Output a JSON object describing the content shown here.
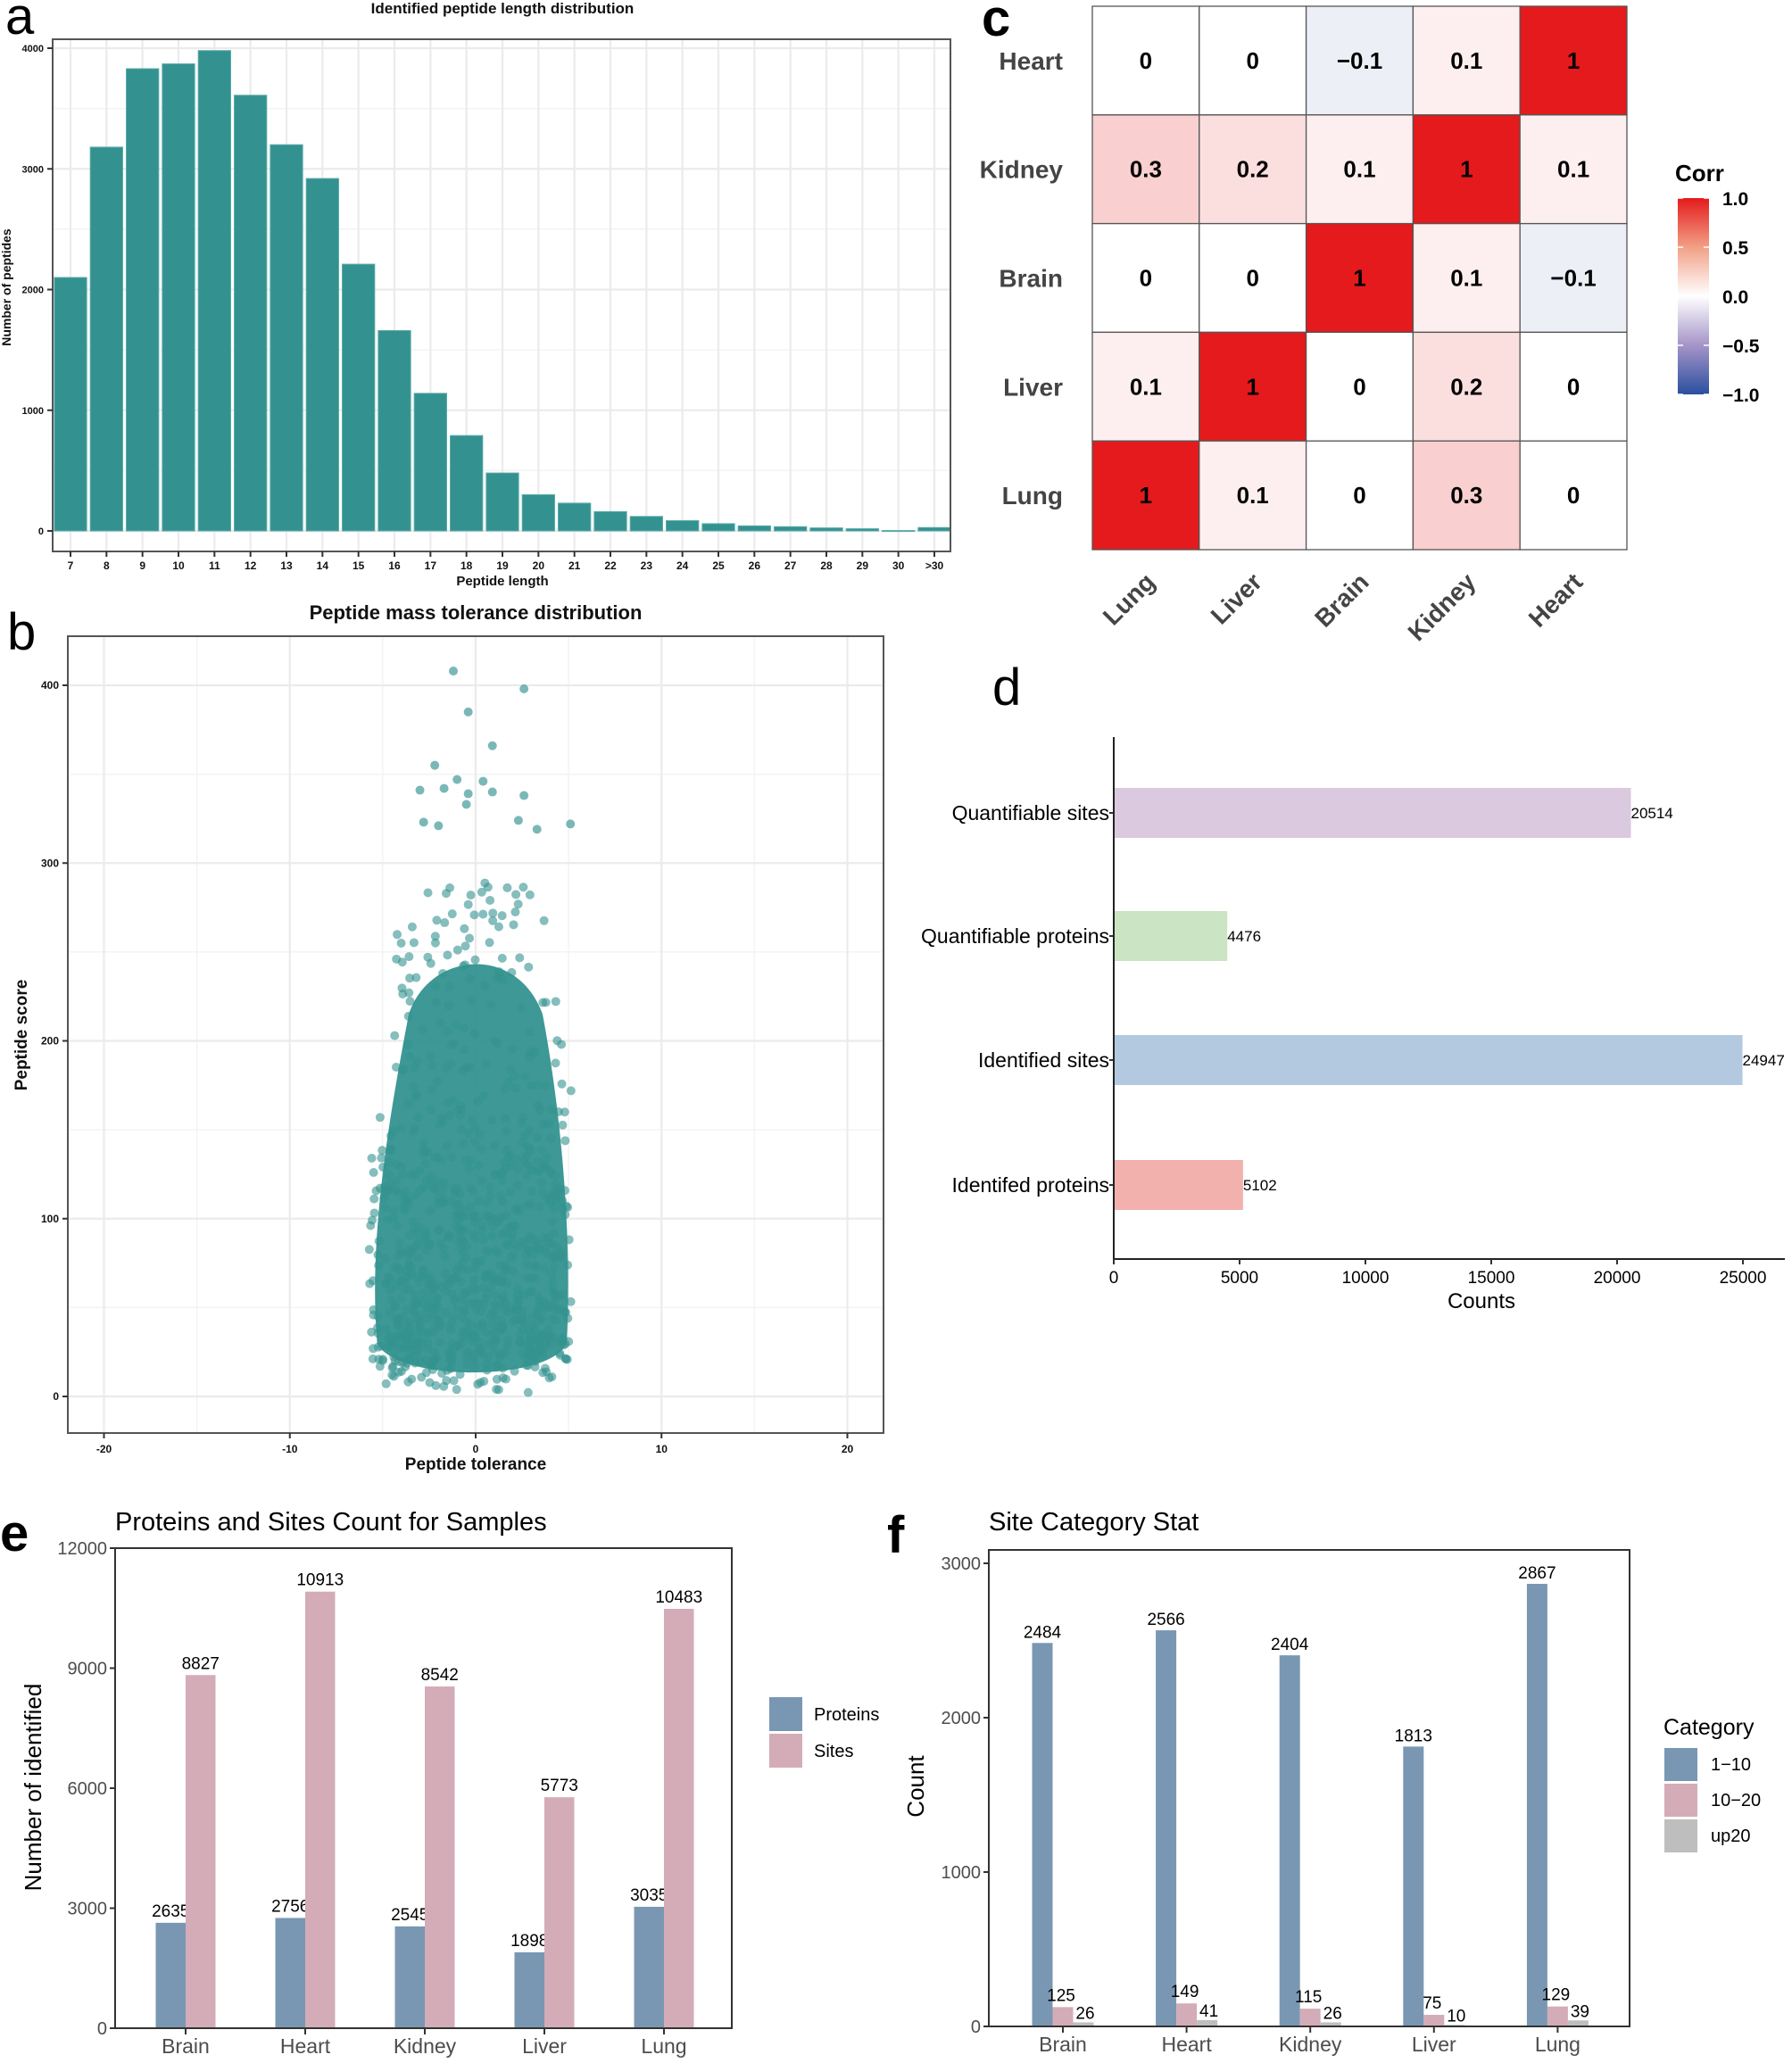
{
  "figure": {
    "panel_letters": [
      "a",
      "b",
      "c",
      "d",
      "e",
      "f"
    ]
  },
  "chart_data": [
    {
      "id": "a",
      "type": "bar",
      "title": "Identified peptide length distribution",
      "xlabel": "Peptide length",
      "ylabel": "Number of peptides",
      "categories": [
        "7",
        "8",
        "9",
        "10",
        "11",
        "12",
        "13",
        "14",
        "15",
        "16",
        "17",
        "18",
        "19",
        "20",
        "21",
        "22",
        "23",
        "24",
        "25",
        "26",
        "27",
        "28",
        "29",
        "30",
        ">30"
      ],
      "values": [
        2100,
        3180,
        3830,
        3870,
        3980,
        3610,
        3200,
        2920,
        2210,
        1660,
        1140,
        790,
        480,
        300,
        230,
        160,
        120,
        85,
        60,
        42,
        35,
        25,
        18,
        3,
        28
      ],
      "yticks": [
        0,
        1000,
        2000,
        3000,
        4000
      ],
      "ylim": [
        -200,
        4180
      ],
      "grid": true,
      "color": "#339290"
    },
    {
      "id": "b",
      "type": "scatter",
      "title": "Peptide mass tolerance distribution",
      "xlabel": "Peptide tolerance",
      "ylabel": "Peptide score",
      "xticks": [
        -20,
        -10,
        0,
        10,
        20
      ],
      "xtick_labels": [
        "-20",
        "-10",
        "0",
        "10",
        "20"
      ],
      "yticks": [
        0,
        100,
        200,
        300,
        400
      ],
      "xlim": [
        -22,
        22
      ],
      "ylim": [
        -20,
        430
      ],
      "grid": true,
      "color": "#339290",
      "distribution": {
        "x_range": [
          -6.5,
          6
        ],
        "x_core_range": [
          -5,
          4.5
        ],
        "y_bulk_range": [
          0,
          250
        ],
        "y_max": 408,
        "note": "dense cloud of points centered near x=0, most scores between 20 and 200"
      },
      "outliers": [
        {
          "x": -1.2,
          "y": 408
        },
        {
          "x": 2.6,
          "y": 398
        },
        {
          "x": -0.4,
          "y": 385
        },
        {
          "x": 0.9,
          "y": 366
        },
        {
          "x": -2.2,
          "y": 355
        },
        {
          "x": -1.0,
          "y": 347
        },
        {
          "x": 0.4,
          "y": 346
        },
        {
          "x": -3.0,
          "y": 341
        },
        {
          "x": -1.7,
          "y": 342
        },
        {
          "x": -0.4,
          "y": 339
        },
        {
          "x": 0.9,
          "y": 340
        },
        {
          "x": 2.6,
          "y": 338
        },
        {
          "x": -0.5,
          "y": 333
        },
        {
          "x": -2.8,
          "y": 323
        },
        {
          "x": 5.1,
          "y": 322
        },
        {
          "x": 3.3,
          "y": 319
        },
        {
          "x": 2.3,
          "y": 324
        },
        {
          "x": -2.0,
          "y": 321
        }
      ]
    },
    {
      "id": "c",
      "type": "heatmap",
      "legend_title": "Corr",
      "row_labels": [
        "Heart",
        "Kidney",
        "Brain",
        "Liver",
        "Lung"
      ],
      "col_labels": [
        "Lung",
        "Liver",
        "Brain",
        "Kidney",
        "Heart"
      ],
      "values": [
        [
          0,
          0,
          -0.1,
          0.1,
          1
        ],
        [
          0.3,
          0.2,
          0.1,
          1,
          0.1
        ],
        [
          0,
          0,
          1,
          0.1,
          -0.1
        ],
        [
          0.1,
          1,
          0,
          0.2,
          0
        ],
        [
          1,
          0.1,
          0,
          0.3,
          0
        ]
      ],
      "cell_labels": [
        [
          "0",
          "0",
          "−0.1",
          "0.1",
          "1"
        ],
        [
          "0.3",
          "0.2",
          "0.1",
          "1",
          "0.1"
        ],
        [
          "0",
          "0",
          "1",
          "0.1",
          "−0.1"
        ],
        [
          "0.1",
          "1",
          "0",
          "0.2",
          "0"
        ],
        [
          "1",
          "0.1",
          "0",
          "0.3",
          "0"
        ]
      ],
      "colorbar_ticks": [
        "1.0",
        "0.5",
        "0.0",
        "−0.5",
        "−1.0"
      ],
      "colorbar_range": [
        -1,
        1
      ],
      "colors": {
        "high": "#E41A1C",
        "mid": "#FFFFFF",
        "low": "#2B4FA0"
      }
    },
    {
      "id": "d",
      "type": "bar",
      "orientation": "horizontal",
      "categories": [
        "Quantifiable sites",
        "Quantifiable proteins",
        "Identified sites",
        "Identifed proteins"
      ],
      "values": [
        20514,
        4476,
        24947,
        5102
      ],
      "value_labels": [
        "20514",
        "4476",
        "24947",
        "5102"
      ],
      "colors": [
        "#DBC9DF",
        "#CBE4C4",
        "#B3C9DF",
        "#F3B1AE"
      ],
      "xlabel": "Counts",
      "xticks": [
        0,
        5000,
        10000,
        15000,
        20000,
        25000
      ],
      "xlim": [
        0,
        26800
      ]
    },
    {
      "id": "e",
      "type": "bar",
      "title": "Proteins and Sites Count for Samples",
      "ylabel": "Number of identified",
      "categories": [
        "Brain",
        "Heart",
        "Kidney",
        "Liver",
        "Lung"
      ],
      "series": [
        {
          "name": "Proteins",
          "values": [
            2635,
            2756,
            2545,
            1898,
            3035
          ],
          "color": "#7997B3"
        },
        {
          "name": "Sites",
          "values": [
            8827,
            10913,
            8542,
            5773,
            10483
          ],
          "color": "#D3ACB7"
        }
      ],
      "yticks": [
        0,
        3000,
        6000,
        9000,
        12000
      ],
      "ylim": [
        0,
        12000
      ],
      "legend": "right"
    },
    {
      "id": "f",
      "type": "bar",
      "title": "Site Category Stat",
      "ylabel": "Count",
      "legend_title": "Category",
      "categories": [
        "Brain",
        "Heart",
        "Kidney",
        "Liver",
        "Lung"
      ],
      "series": [
        {
          "name": "1−10",
          "values": [
            2484,
            2566,
            2404,
            1813,
            2867
          ],
          "color": "#7997B3"
        },
        {
          "name": "10−20",
          "values": [
            125,
            149,
            115,
            75,
            129
          ],
          "color": "#D3ACB7"
        },
        {
          "name": "up20",
          "values": [
            26,
            41,
            26,
            10,
            39
          ],
          "color": "#BEBEBE"
        }
      ],
      "yticks": [
        0,
        1000,
        2000,
        3000
      ],
      "ylim": [
        0,
        3100
      ],
      "legend": "right"
    }
  ]
}
